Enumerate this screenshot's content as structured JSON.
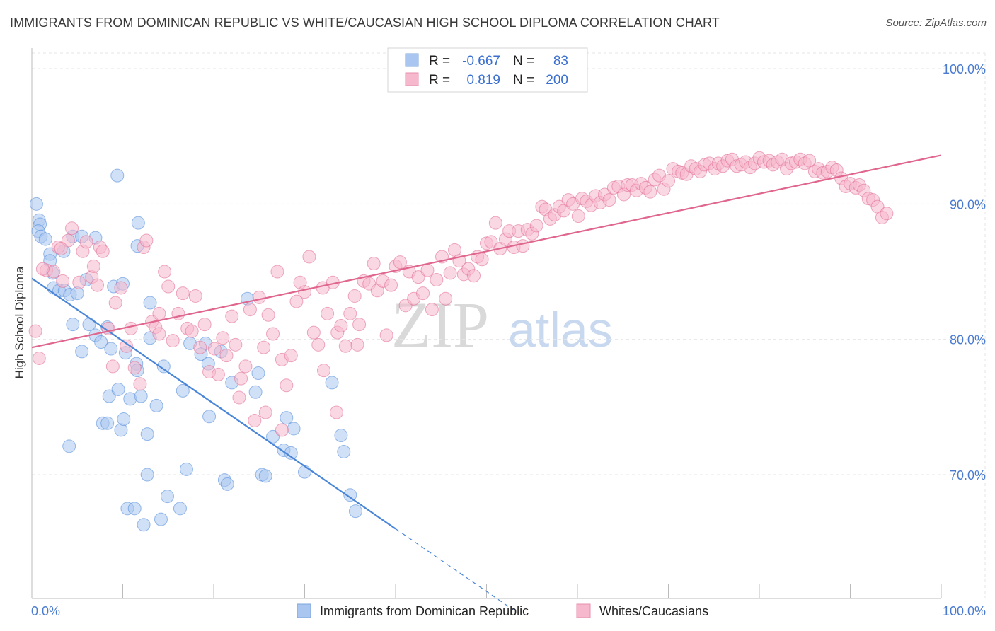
{
  "header": {
    "title": "IMMIGRANTS FROM DOMINICAN REPUBLIC VS WHITE/CAUCASIAN HIGH SCHOOL DIPLOMA CORRELATION CHART",
    "source": "Source: ZipAtlas.com"
  },
  "watermark": {
    "zip": "ZIP",
    "atlas": "atlas"
  },
  "legend": {
    "rows": [
      {
        "r_label": "R =",
        "r_value": "-0.667",
        "n_label": "N =",
        "n_value": "83",
        "color": "#a9c6f0"
      },
      {
        "r_label": "R =",
        "r_value": "0.819",
        "n_label": "N =",
        "n_value": "200",
        "color": "#f6b8cc"
      }
    ]
  },
  "bottom_legend": [
    {
      "label": "Immigrants from Dominican Republic",
      "color": "#a9c6f0"
    },
    {
      "label": "Whites/Caucasians",
      "color": "#f6b8cc"
    }
  ],
  "chart_data": {
    "type": "scatter",
    "title": "IMMIGRANTS FROM DOMINICAN REPUBLIC VS WHITE/CAUCASIAN HIGH SCHOOL DIPLOMA CORRELATION CHART",
    "xlabel": "",
    "ylabel": "High School Diploma",
    "xlim": [
      0,
      100
    ],
    "ylim": [
      60,
      102
    ],
    "x_tick_labels": [
      "0.0%",
      "100.0%"
    ],
    "y_ticks": [
      70,
      80,
      90,
      100
    ],
    "y_tick_labels": [
      "70.0%",
      "80.0%",
      "90.0%",
      "100.0%"
    ],
    "grid": true,
    "legend_position": "top-center",
    "series": [
      {
        "name": "Immigrants from Dominican Republic",
        "color": "#4a86d8",
        "fill": "#a9c6f0",
        "trend": {
          "x0": 0,
          "y0": 84.5,
          "x1": 40,
          "y1": 66.0,
          "dash_to_x": 53
        },
        "points": [
          [
            0.5,
            90.0
          ],
          [
            0.8,
            88.8
          ],
          [
            0.9,
            88.5
          ],
          [
            0.7,
            88.0
          ],
          [
            1.0,
            87.6
          ],
          [
            1.5,
            87.4
          ],
          [
            2.0,
            86.3
          ],
          [
            2.0,
            85.8
          ],
          [
            3.5,
            86.5
          ],
          [
            4.5,
            87.6
          ],
          [
            5.5,
            87.6
          ],
          [
            7.0,
            87.5
          ],
          [
            2.3,
            84.9
          ],
          [
            2.4,
            83.8
          ],
          [
            3.0,
            83.6
          ],
          [
            3.6,
            83.6
          ],
          [
            4.2,
            83.3
          ],
          [
            5.0,
            83.4
          ],
          [
            6.0,
            84.4
          ],
          [
            9.0,
            83.9
          ],
          [
            10.0,
            84.1
          ],
          [
            9.4,
            92.1
          ],
          [
            11.7,
            88.6
          ],
          [
            11.6,
            86.9
          ],
          [
            4.5,
            81.1
          ],
          [
            6.3,
            81.1
          ],
          [
            7.0,
            80.3
          ],
          [
            8.3,
            80.9
          ],
          [
            10.3,
            79.0
          ],
          [
            13.0,
            80.1
          ],
          [
            5.5,
            79.1
          ],
          [
            7.6,
            79.8
          ],
          [
            8.7,
            79.3
          ],
          [
            11.5,
            78.2
          ],
          [
            13.0,
            82.7
          ],
          [
            14.5,
            78.0
          ],
          [
            17.4,
            79.7
          ],
          [
            18.6,
            78.9
          ],
          [
            19.1,
            79.7
          ],
          [
            19.4,
            78.2
          ],
          [
            20.8,
            79.1
          ],
          [
            22.0,
            76.8
          ],
          [
            23.7,
            83.0
          ],
          [
            24.9,
            77.5
          ],
          [
            8.5,
            75.8
          ],
          [
            9.5,
            76.3
          ],
          [
            10.8,
            75.6
          ],
          [
            12.0,
            75.8
          ],
          [
            13.7,
            75.1
          ],
          [
            16.6,
            76.2
          ],
          [
            11.6,
            77.7
          ],
          [
            7.8,
            73.8
          ],
          [
            8.3,
            73.8
          ],
          [
            9.8,
            73.3
          ],
          [
            10.1,
            74.1
          ],
          [
            12.7,
            73.0
          ],
          [
            19.5,
            74.3
          ],
          [
            24.6,
            76.1
          ],
          [
            26.5,
            72.8
          ],
          [
            28.0,
            74.2
          ],
          [
            28.8,
            73.4
          ],
          [
            27.7,
            71.8
          ],
          [
            28.5,
            71.6
          ],
          [
            33.0,
            76.8
          ],
          [
            34.0,
            72.9
          ],
          [
            34.3,
            71.7
          ],
          [
            30.0,
            70.2
          ],
          [
            12.7,
            70.0
          ],
          [
            17.0,
            70.4
          ],
          [
            21.2,
            69.6
          ],
          [
            21.5,
            69.3
          ],
          [
            25.3,
            70.0
          ],
          [
            25.7,
            69.9
          ],
          [
            14.9,
            68.4
          ],
          [
            10.5,
            67.5
          ],
          [
            11.3,
            67.5
          ],
          [
            16.3,
            67.5
          ],
          [
            12.3,
            66.3
          ],
          [
            14.2,
            66.7
          ],
          [
            35.0,
            68.5
          ],
          [
            35.6,
            67.3
          ],
          [
            4.1,
            72.1
          ]
        ]
      },
      {
        "name": "Whites/Caucasians",
        "color": "#e0668e",
        "fill": "#f6b8cc",
        "trend": {
          "x0": 0,
          "y0": 79.4,
          "x1": 100,
          "y1": 93.6
        },
        "points": [
          [
            0.4,
            80.6
          ],
          [
            0.8,
            78.6
          ],
          [
            1.6,
            85.1
          ],
          [
            2.4,
            85.0
          ],
          [
            2.9,
            86.8
          ],
          [
            3.4,
            84.3
          ],
          [
            4.0,
            87.3
          ],
          [
            4.4,
            88.2
          ],
          [
            5.2,
            84.2
          ],
          [
            5.6,
            86.5
          ],
          [
            6.0,
            87.2
          ],
          [
            6.6,
            84.6
          ],
          [
            7.2,
            84.0
          ],
          [
            7.5,
            86.8
          ],
          [
            7.8,
            86.5
          ],
          [
            8.4,
            80.8
          ],
          [
            8.9,
            78.0
          ],
          [
            9.2,
            82.7
          ],
          [
            9.8,
            83.8
          ],
          [
            10.4,
            79.5
          ],
          [
            10.9,
            80.8
          ],
          [
            11.3,
            77.9
          ],
          [
            11.9,
            76.7
          ],
          [
            12.3,
            86.8
          ],
          [
            12.6,
            87.3
          ],
          [
            13.2,
            81.3
          ],
          [
            13.6,
            80.9
          ],
          [
            14.0,
            81.9
          ],
          [
            14.6,
            85.0
          ],
          [
            15.0,
            83.9
          ],
          [
            15.5,
            79.9
          ],
          [
            16.1,
            81.9
          ],
          [
            16.6,
            83.4
          ],
          [
            17.1,
            80.8
          ],
          [
            17.6,
            80.6
          ],
          [
            18.0,
            83.2
          ],
          [
            18.5,
            79.4
          ],
          [
            19.0,
            81.1
          ],
          [
            19.5,
            77.6
          ],
          [
            20.1,
            79.3
          ],
          [
            20.5,
            77.4
          ],
          [
            21.0,
            80.1
          ],
          [
            21.4,
            78.8
          ],
          [
            22.0,
            81.7
          ],
          [
            22.4,
            79.6
          ],
          [
            23.0,
            77.1
          ],
          [
            23.5,
            78.0
          ],
          [
            24.0,
            82.2
          ],
          [
            24.5,
            74.0
          ],
          [
            25.0,
            83.1
          ],
          [
            25.5,
            79.4
          ],
          [
            26.0,
            81.8
          ],
          [
            26.5,
            80.4
          ],
          [
            27.0,
            85.0
          ],
          [
            27.5,
            78.5
          ],
          [
            28.0,
            76.6
          ],
          [
            28.5,
            78.8
          ],
          [
            29.1,
            82.8
          ],
          [
            29.5,
            84.2
          ],
          [
            30.0,
            83.5
          ],
          [
            30.5,
            86.1
          ],
          [
            31.0,
            80.5
          ],
          [
            31.5,
            79.6
          ],
          [
            32.0,
            83.8
          ],
          [
            32.5,
            81.9
          ],
          [
            33.1,
            84.2
          ],
          [
            33.6,
            80.5
          ],
          [
            34.0,
            81.0
          ],
          [
            34.5,
            79.5
          ],
          [
            35.0,
            81.9
          ],
          [
            35.5,
            83.2
          ],
          [
            36.0,
            81.1
          ],
          [
            36.5,
            84.3
          ],
          [
            37.1,
            84.1
          ],
          [
            37.6,
            85.6
          ],
          [
            38.0,
            83.6
          ],
          [
            38.6,
            84.3
          ],
          [
            39.0,
            80.3
          ],
          [
            39.5,
            84.0
          ],
          [
            40.0,
            85.4
          ],
          [
            40.5,
            85.7
          ],
          [
            41.1,
            82.5
          ],
          [
            41.5,
            85.0
          ],
          [
            42.0,
            83.0
          ],
          [
            42.5,
            84.6
          ],
          [
            43.0,
            83.4
          ],
          [
            43.5,
            85.1
          ],
          [
            44.0,
            82.2
          ],
          [
            44.5,
            84.4
          ],
          [
            45.1,
            86.1
          ],
          [
            45.5,
            83.0
          ],
          [
            46.0,
            84.9
          ],
          [
            46.5,
            86.6
          ],
          [
            47.0,
            85.8
          ],
          [
            47.5,
            84.8
          ],
          [
            48.0,
            85.2
          ],
          [
            48.6,
            84.7
          ],
          [
            49.0,
            86.1
          ],
          [
            49.5,
            85.9
          ],
          [
            50.0,
            87.1
          ],
          [
            50.5,
            87.2
          ],
          [
            51.0,
            88.6
          ],
          [
            51.5,
            86.7
          ],
          [
            52.1,
            87.4
          ],
          [
            52.5,
            88.0
          ],
          [
            53.0,
            86.8
          ],
          [
            53.5,
            88.0
          ],
          [
            54.0,
            86.9
          ],
          [
            54.5,
            88.1
          ],
          [
            55.0,
            87.8
          ],
          [
            55.5,
            88.4
          ],
          [
            56.1,
            89.8
          ],
          [
            56.5,
            89.6
          ],
          [
            57.0,
            88.9
          ],
          [
            57.5,
            89.2
          ],
          [
            58.0,
            89.8
          ],
          [
            58.5,
            89.5
          ],
          [
            59.0,
            90.3
          ],
          [
            59.5,
            90.0
          ],
          [
            60.1,
            89.1
          ],
          [
            60.5,
            90.4
          ],
          [
            61.0,
            90.2
          ],
          [
            61.5,
            89.9
          ],
          [
            62.0,
            90.6
          ],
          [
            62.5,
            90.1
          ],
          [
            63.0,
            90.7
          ],
          [
            63.5,
            90.3
          ],
          [
            64.0,
            91.2
          ],
          [
            64.5,
            91.3
          ],
          [
            65.1,
            90.7
          ],
          [
            65.5,
            91.4
          ],
          [
            66.0,
            91.4
          ],
          [
            66.5,
            91.0
          ],
          [
            67.0,
            91.5
          ],
          [
            67.5,
            91.2
          ],
          [
            68.0,
            90.9
          ],
          [
            68.5,
            91.8
          ],
          [
            69.0,
            92.1
          ],
          [
            69.5,
            91.1
          ],
          [
            70.0,
            91.7
          ],
          [
            70.5,
            92.6
          ],
          [
            71.1,
            92.4
          ],
          [
            71.5,
            92.3
          ],
          [
            72.0,
            92.2
          ],
          [
            72.5,
            92.8
          ],
          [
            73.0,
            92.6
          ],
          [
            73.5,
            92.4
          ],
          [
            74.0,
            92.9
          ],
          [
            74.5,
            93.0
          ],
          [
            75.1,
            92.6
          ],
          [
            75.5,
            93.0
          ],
          [
            76.0,
            92.8
          ],
          [
            76.5,
            93.2
          ],
          [
            77.0,
            93.3
          ],
          [
            77.5,
            92.8
          ],
          [
            78.0,
            92.9
          ],
          [
            78.5,
            93.1
          ],
          [
            79.0,
            92.7
          ],
          [
            79.5,
            93.0
          ],
          [
            80.0,
            93.4
          ],
          [
            80.5,
            93.1
          ],
          [
            81.1,
            93.2
          ],
          [
            81.5,
            92.9
          ],
          [
            82.0,
            93.1
          ],
          [
            82.5,
            93.3
          ],
          [
            83.0,
            92.6
          ],
          [
            83.5,
            93.0
          ],
          [
            84.0,
            93.1
          ],
          [
            84.5,
            93.3
          ],
          [
            85.0,
            93.0
          ],
          [
            85.5,
            93.2
          ],
          [
            86.1,
            92.4
          ],
          [
            86.5,
            92.6
          ],
          [
            87.0,
            92.3
          ],
          [
            87.5,
            92.4
          ],
          [
            88.0,
            92.7
          ],
          [
            88.5,
            92.5
          ],
          [
            89.0,
            91.9
          ],
          [
            89.5,
            91.3
          ],
          [
            90.0,
            91.5
          ],
          [
            90.6,
            91.2
          ],
          [
            91.0,
            91.4
          ],
          [
            91.5,
            91.0
          ],
          [
            92.0,
            90.4
          ],
          [
            92.5,
            90.3
          ],
          [
            93.0,
            89.8
          ],
          [
            93.5,
            89.0
          ],
          [
            94.0,
            89.3
          ],
          [
            1.2,
            85.2
          ],
          [
            3.2,
            86.7
          ],
          [
            6.8,
            85.4
          ],
          [
            14.0,
            80.4
          ],
          [
            22.8,
            75.7
          ],
          [
            25.7,
            74.6
          ],
          [
            27.5,
            73.3
          ],
          [
            33.5,
            74.6
          ],
          [
            35.8,
            79.6
          ],
          [
            32.1,
            77.7
          ]
        ]
      }
    ]
  }
}
